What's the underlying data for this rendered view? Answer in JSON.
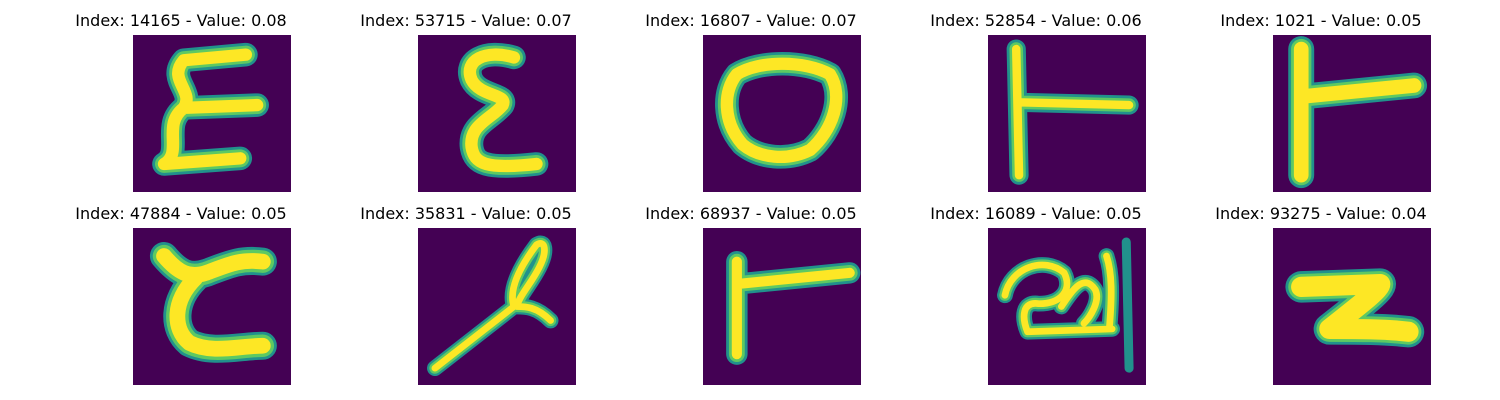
{
  "colors": {
    "background": "#440154",
    "stroke_edge": "#21918c",
    "stroke_mid": "#5ec962",
    "stroke_core": "#fde725"
  },
  "panels": [
    {
      "title": "Index: 14165 - Value: 0.08",
      "glyph": "E"
    },
    {
      "title": "Index: 53715 - Value: 0.07",
      "glyph": "E"
    },
    {
      "title": "Index: 16807 - Value: 0.07",
      "glyph": "O"
    },
    {
      "title": "Index: 52854 - Value: 0.06",
      "glyph": "T"
    },
    {
      "title": "Index: 1021 - Value: 0.05",
      "glyph": "T"
    },
    {
      "title": "Index: 47884 - Value: 0.05",
      "glyph": "C"
    },
    {
      "title": "Index: 35831 - Value: 0.05",
      "glyph": "stroke"
    },
    {
      "title": "Index: 68937 - Value: 0.05",
      "glyph": "T"
    },
    {
      "title": "Index: 16089 - Value: 0.05",
      "glyph": "scribble"
    },
    {
      "title": "Index: 93275 - Value: 0.04",
      "glyph": "Z"
    }
  ]
}
